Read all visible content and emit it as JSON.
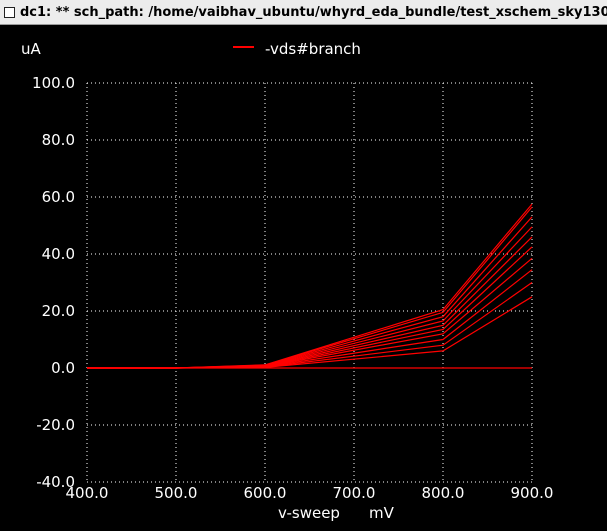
{
  "window": {
    "title": "dc1: ** sch_path: /home/vaibhav_ubuntu/whyrd_eda_bundle/test_xschem_sky130"
  },
  "colors": {
    "background": "#000000",
    "trace": "#ff0000",
    "grid": "#ffffff",
    "text": "#ffffff"
  },
  "chart_data": {
    "type": "line",
    "y_unit": "uA",
    "xlabel": "v-sweep",
    "x_unit": "mV",
    "legend": {
      "label": "-vds#branch",
      "placement": "top-center"
    },
    "xlim": [
      400,
      900
    ],
    "ylim": [
      -40,
      100
    ],
    "x_ticks": [
      "400.0",
      "500.0",
      "600.0",
      "700.0",
      "800.0",
      "900.0"
    ],
    "y_ticks": [
      "100.0",
      "80.0",
      "60.0",
      "40.0",
      "20.0",
      "0.0",
      "-20.0",
      "-40.0"
    ],
    "grid": true,
    "x": [
      400,
      500,
      600,
      800,
      900
    ],
    "series": [
      {
        "values": [
          0,
          0,
          0,
          0,
          0
        ]
      },
      {
        "values": [
          0,
          0,
          0.2,
          6.0,
          25.0
        ]
      },
      {
        "values": [
          0,
          0,
          0.3,
          8.0,
          30.0
        ]
      },
      {
        "values": [
          0,
          0,
          0.4,
          10.0,
          34.5
        ]
      },
      {
        "values": [
          0,
          0,
          0.5,
          12.0,
          38.5
        ]
      },
      {
        "values": [
          0,
          0,
          0.6,
          13.5,
          42.5
        ]
      },
      {
        "values": [
          0,
          0,
          0.7,
          15.0,
          46.0
        ]
      },
      {
        "values": [
          0,
          0,
          0.8,
          16.5,
          49.5
        ]
      },
      {
        "values": [
          0,
          0,
          0.9,
          18.0,
          53.0
        ]
      },
      {
        "values": [
          0,
          0,
          1.0,
          19.5,
          56.5
        ]
      },
      {
        "values": [
          0,
          0,
          1.1,
          20.5,
          57.5
        ]
      }
    ]
  }
}
